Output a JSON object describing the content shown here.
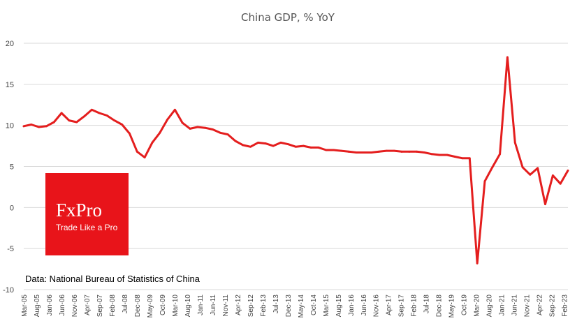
{
  "colors": {
    "series": "#E41E1E",
    "logo_bg": "#E8141A",
    "grid": "#d9d9d9",
    "text": "#444444"
  },
  "logo": {
    "name": "FxPro",
    "tagline": "Trade Like a Pro"
  },
  "source_note": "Data: National Bureau of Statistics of China",
  "chart_data": {
    "type": "line",
    "title": "China GDP, % YoY",
    "xlabel": "",
    "ylabel": "",
    "ylim": [
      -10,
      20
    ],
    "yticks": [
      -10,
      -5,
      0,
      5,
      10,
      15,
      20
    ],
    "grid": true,
    "legend": "none",
    "x_tick_labels": [
      "Mar-05",
      "Aug-05",
      "Jan-06",
      "Jun-06",
      "Nov-06",
      "Apr-07",
      "Sep-07",
      "Feb-08",
      "Jul-08",
      "Dec-08",
      "May-09",
      "Oct-09",
      "Mar-10",
      "Aug-10",
      "Jan-11",
      "Jun-11",
      "Nov-11",
      "Apr-12",
      "Sep-12",
      "Feb-13",
      "Jul-13",
      "Dec-13",
      "May-14",
      "Oct-14",
      "Mar-15",
      "Aug-15",
      "Jan-16",
      "Jun-16",
      "Nov-16",
      "Apr-17",
      "Sep-17",
      "Feb-18",
      "Jul-18",
      "Dec-18",
      "May-19",
      "Oct-19",
      "Mar-20",
      "Aug-20",
      "Jan-21",
      "Jun-21",
      "Nov-21",
      "Apr-22",
      "Sep-22",
      "Feb-23"
    ],
    "series": [
      {
        "name": "China GDP, % YoY",
        "x": [
          "Q1-05",
          "Q2-05",
          "Q3-05",
          "Q4-05",
          "Q1-06",
          "Q2-06",
          "Q3-06",
          "Q4-06",
          "Q1-07",
          "Q2-07",
          "Q3-07",
          "Q4-07",
          "Q1-08",
          "Q2-08",
          "Q3-08",
          "Q4-08",
          "Q1-09",
          "Q2-09",
          "Q3-09",
          "Q4-09",
          "Q1-10",
          "Q2-10",
          "Q3-10",
          "Q4-10",
          "Q1-11",
          "Q2-11",
          "Q3-11",
          "Q4-11",
          "Q1-12",
          "Q2-12",
          "Q3-12",
          "Q4-12",
          "Q1-13",
          "Q2-13",
          "Q3-13",
          "Q4-13",
          "Q1-14",
          "Q2-14",
          "Q3-14",
          "Q4-14",
          "Q1-15",
          "Q2-15",
          "Q3-15",
          "Q4-15",
          "Q1-16",
          "Q2-16",
          "Q3-16",
          "Q4-16",
          "Q1-17",
          "Q2-17",
          "Q3-17",
          "Q4-17",
          "Q1-18",
          "Q2-18",
          "Q3-18",
          "Q4-18",
          "Q1-19",
          "Q2-19",
          "Q3-19",
          "Q4-19",
          "Q1-20",
          "Q2-20",
          "Q3-20",
          "Q4-20",
          "Q1-21",
          "Q2-21",
          "Q3-21",
          "Q4-21",
          "Q1-22",
          "Q2-22",
          "Q3-22",
          "Q4-22",
          "Q1-23"
        ],
        "values": [
          9.9,
          10.1,
          9.8,
          9.9,
          10.4,
          11.5,
          10.6,
          10.4,
          11.1,
          11.9,
          11.5,
          11.2,
          10.6,
          10.1,
          9.0,
          6.8,
          6.1,
          7.9,
          9.1,
          10.7,
          11.9,
          10.3,
          9.6,
          9.8,
          9.7,
          9.5,
          9.1,
          8.9,
          8.1,
          7.6,
          7.4,
          7.9,
          7.8,
          7.5,
          7.9,
          7.7,
          7.4,
          7.5,
          7.3,
          7.3,
          7.0,
          7.0,
          6.9,
          6.8,
          6.7,
          6.7,
          6.7,
          6.8,
          6.9,
          6.9,
          6.8,
          6.8,
          6.8,
          6.7,
          6.5,
          6.4,
          6.4,
          6.2,
          6.0,
          6.0,
          -6.8,
          3.2,
          4.9,
          6.5,
          18.3,
          7.9,
          4.9,
          4.0,
          4.8,
          0.4,
          3.9,
          2.9,
          4.5
        ]
      }
    ]
  }
}
